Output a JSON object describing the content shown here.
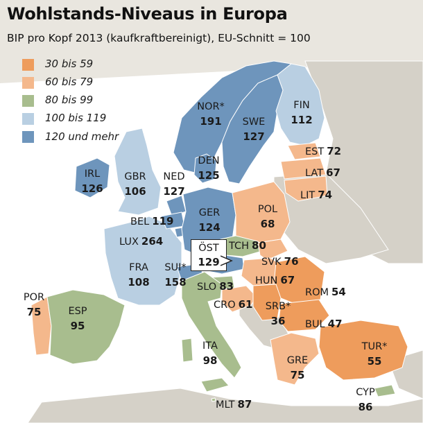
{
  "title": "Wohlstands-Niveaus in Europa",
  "subtitle": "BIP pro Kopf 2013 (kaufkraftbereinigt), EU-Schnitt = 100",
  "colors": {
    "class_30_59": "#ee9c5c",
    "class_60_79": "#f4b88c",
    "class_80_99": "#a8bd8e",
    "class_100_119": "#b9cfe2",
    "class_120_plus": "#6e95bc",
    "no_data": "#d5d1c8",
    "sea": "#ffffff"
  },
  "legend": [
    {
      "label": "30 bis 59",
      "color": "#ee9c5c"
    },
    {
      "label": "60 bis 79",
      "color": "#f4b88c"
    },
    {
      "label": "80 bis 99",
      "color": "#a8bd8e"
    },
    {
      "label": "100 bis 119",
      "color": "#b9cfe2"
    },
    {
      "label": "120 und mehr",
      "color": "#6e95bc"
    }
  ],
  "countries": {
    "nor": {
      "code": "NOR*",
      "value": "191"
    },
    "swe": {
      "code": "SWE",
      "value": "127"
    },
    "fin": {
      "code": "FIN",
      "value": "112"
    },
    "est": {
      "code": "EST",
      "value": "72"
    },
    "lat": {
      "code": "LAT",
      "value": "67"
    },
    "lit": {
      "code": "LIT",
      "value": "74"
    },
    "den": {
      "code": "DEN",
      "value": "125"
    },
    "irl": {
      "code": "IRL",
      "value": "126"
    },
    "gbr": {
      "code": "GBR",
      "value": "106"
    },
    "ned": {
      "code": "NED",
      "value": "127"
    },
    "ger": {
      "code": "GER",
      "value": "124"
    },
    "pol": {
      "code": "POL",
      "value": "68"
    },
    "bel": {
      "code": "BEL",
      "value": "119"
    },
    "lux": {
      "code": "LUX",
      "value": "264"
    },
    "tch": {
      "code": "TCH",
      "value": "80"
    },
    "ost": {
      "code": "ÖST",
      "value": "129"
    },
    "svk": {
      "code": "SVK",
      "value": "76"
    },
    "fra": {
      "code": "FRA",
      "value": "108"
    },
    "sui": {
      "code": "SUI*",
      "value": "158"
    },
    "hun": {
      "code": "HUN",
      "value": "67"
    },
    "slo": {
      "code": "SLO",
      "value": "83"
    },
    "rom": {
      "code": "ROM",
      "value": "54"
    },
    "cro": {
      "code": "CRO",
      "value": "61"
    },
    "srb": {
      "code": "SRB*",
      "value": "36"
    },
    "bul": {
      "code": "BUL",
      "value": "47"
    },
    "por": {
      "code": "POR",
      "value": "75"
    },
    "esp": {
      "code": "ESP",
      "value": "95"
    },
    "ita": {
      "code": "ITA",
      "value": "98"
    },
    "gre": {
      "code": "GRE",
      "value": "75"
    },
    "tur": {
      "code": "TUR*",
      "value": "55"
    },
    "mlt": {
      "code": "MLT",
      "value": "87"
    },
    "cyp": {
      "code": "CYP",
      "value": "86"
    }
  }
}
